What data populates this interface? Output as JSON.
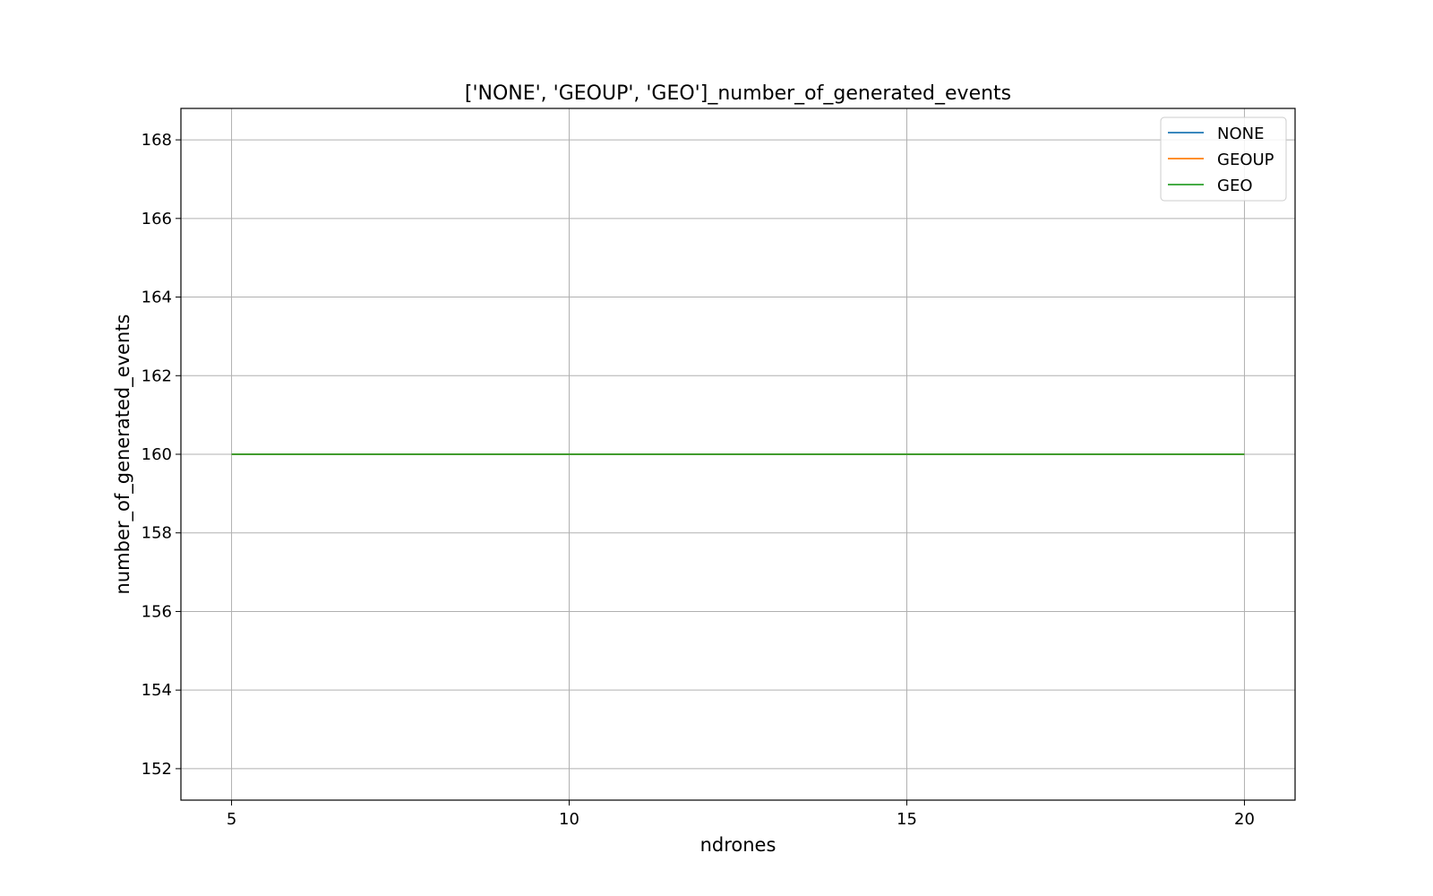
{
  "chart_data": {
    "type": "line",
    "title": "['NONE', 'GEOUP', 'GEO']_number_of_generated_events",
    "xlabel": "ndrones",
    "ylabel": "number_of_generated_events",
    "x": [
      5,
      10,
      15,
      20
    ],
    "xlim": [
      4.25,
      20.75
    ],
    "ylim": [
      151.2,
      168.8
    ],
    "xticks": [
      5,
      10,
      15,
      20
    ],
    "yticks": [
      152,
      154,
      156,
      158,
      160,
      162,
      164,
      166,
      168
    ],
    "grid": true,
    "legend_position": "top-right",
    "series": [
      {
        "name": "NONE",
        "color": "#1f77b4",
        "values": [
          160,
          160,
          160,
          160
        ]
      },
      {
        "name": "GEOUP",
        "color": "#ff7f0e",
        "values": [
          160,
          160,
          160,
          160
        ]
      },
      {
        "name": "GEO",
        "color": "#2ca02c",
        "values": [
          160,
          160,
          160,
          160
        ]
      }
    ]
  }
}
